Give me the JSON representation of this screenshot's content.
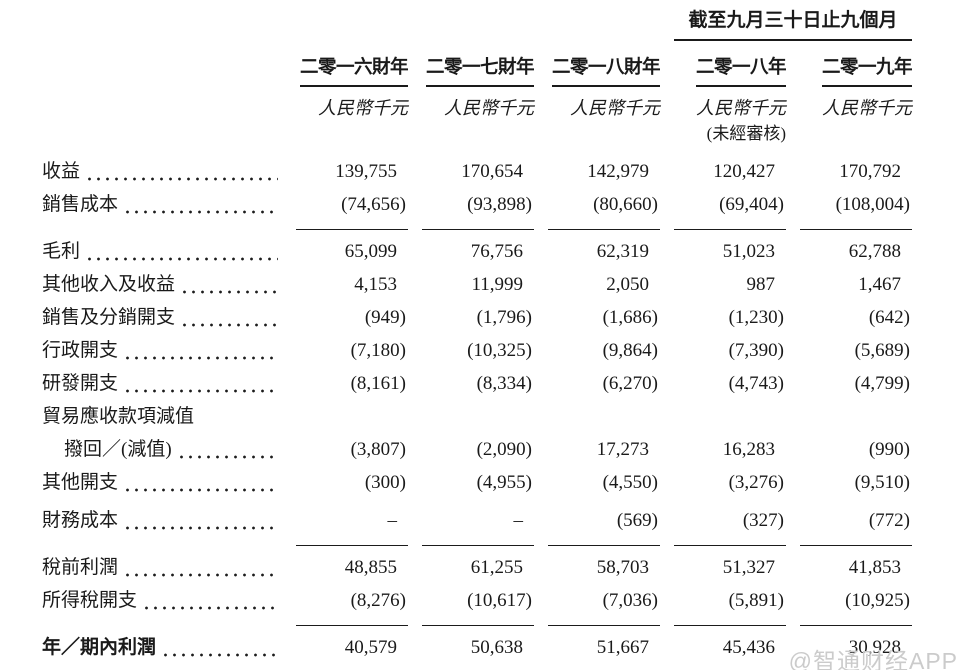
{
  "watermark": "@智通财经APP",
  "table": {
    "period_header": "截至九月三十日止九個月",
    "columns": [
      {
        "year": "二零一六財年",
        "unit": "人民幣千元",
        "note": ""
      },
      {
        "year": "二零一七財年",
        "unit": "人民幣千元",
        "note": ""
      },
      {
        "year": "二零一八財年",
        "unit": "人民幣千元",
        "note": ""
      },
      {
        "year": "二零一八年",
        "unit": "人民幣千元",
        "note": "(未經審核)"
      },
      {
        "year": "二零一九年",
        "unit": "人民幣千元",
        "note": ""
      }
    ],
    "rows": [
      {
        "label": "收益",
        "values": [
          "139,755",
          "170,654",
          "142,979",
          "120,427",
          "170,792"
        ]
      },
      {
        "label": "銷售成本",
        "values": [
          "(74,656)",
          "(93,898)",
          "(80,660)",
          "(69,404)",
          "(108,004)"
        ]
      },
      {
        "label": "毛利",
        "values": [
          "65,099",
          "76,756",
          "62,319",
          "51,023",
          "62,788"
        ]
      },
      {
        "label": "其他收入及收益",
        "values": [
          "4,153",
          "11,999",
          "2,050",
          "987",
          "1,467"
        ]
      },
      {
        "label": "銷售及分銷開支",
        "values": [
          "(949)",
          "(1,796)",
          "(1,686)",
          "(1,230)",
          "(642)"
        ]
      },
      {
        "label": "行政開支",
        "values": [
          "(7,180)",
          "(10,325)",
          "(9,864)",
          "(7,390)",
          "(5,689)"
        ]
      },
      {
        "label": "研發開支",
        "values": [
          "(8,161)",
          "(8,334)",
          "(6,270)",
          "(4,743)",
          "(4,799)"
        ]
      },
      {
        "label": "貿易應收款項減值",
        "values": [
          "",
          "",
          "",
          "",
          ""
        ]
      },
      {
        "label": "撥回／(減值)",
        "values": [
          "(3,807)",
          "(2,090)",
          "17,273",
          "16,283",
          "(990)"
        ]
      },
      {
        "label": "其他開支",
        "values": [
          "(300)",
          "(4,955)",
          "(4,550)",
          "(3,276)",
          "(9,510)"
        ]
      },
      {
        "label": "財務成本",
        "values": [
          "–",
          "–",
          "(569)",
          "(327)",
          "(772)"
        ]
      },
      {
        "label": "稅前利潤",
        "values": [
          "48,855",
          "61,255",
          "58,703",
          "51,327",
          "41,853"
        ]
      },
      {
        "label": "所得稅開支",
        "values": [
          "(8,276)",
          "(10,617)",
          "(7,036)",
          "(5,891)",
          "(10,925)"
        ]
      },
      {
        "label": "年／期內利潤",
        "values": [
          "40,579",
          "50,638",
          "51,667",
          "45,436",
          "30,928"
        ]
      }
    ]
  }
}
